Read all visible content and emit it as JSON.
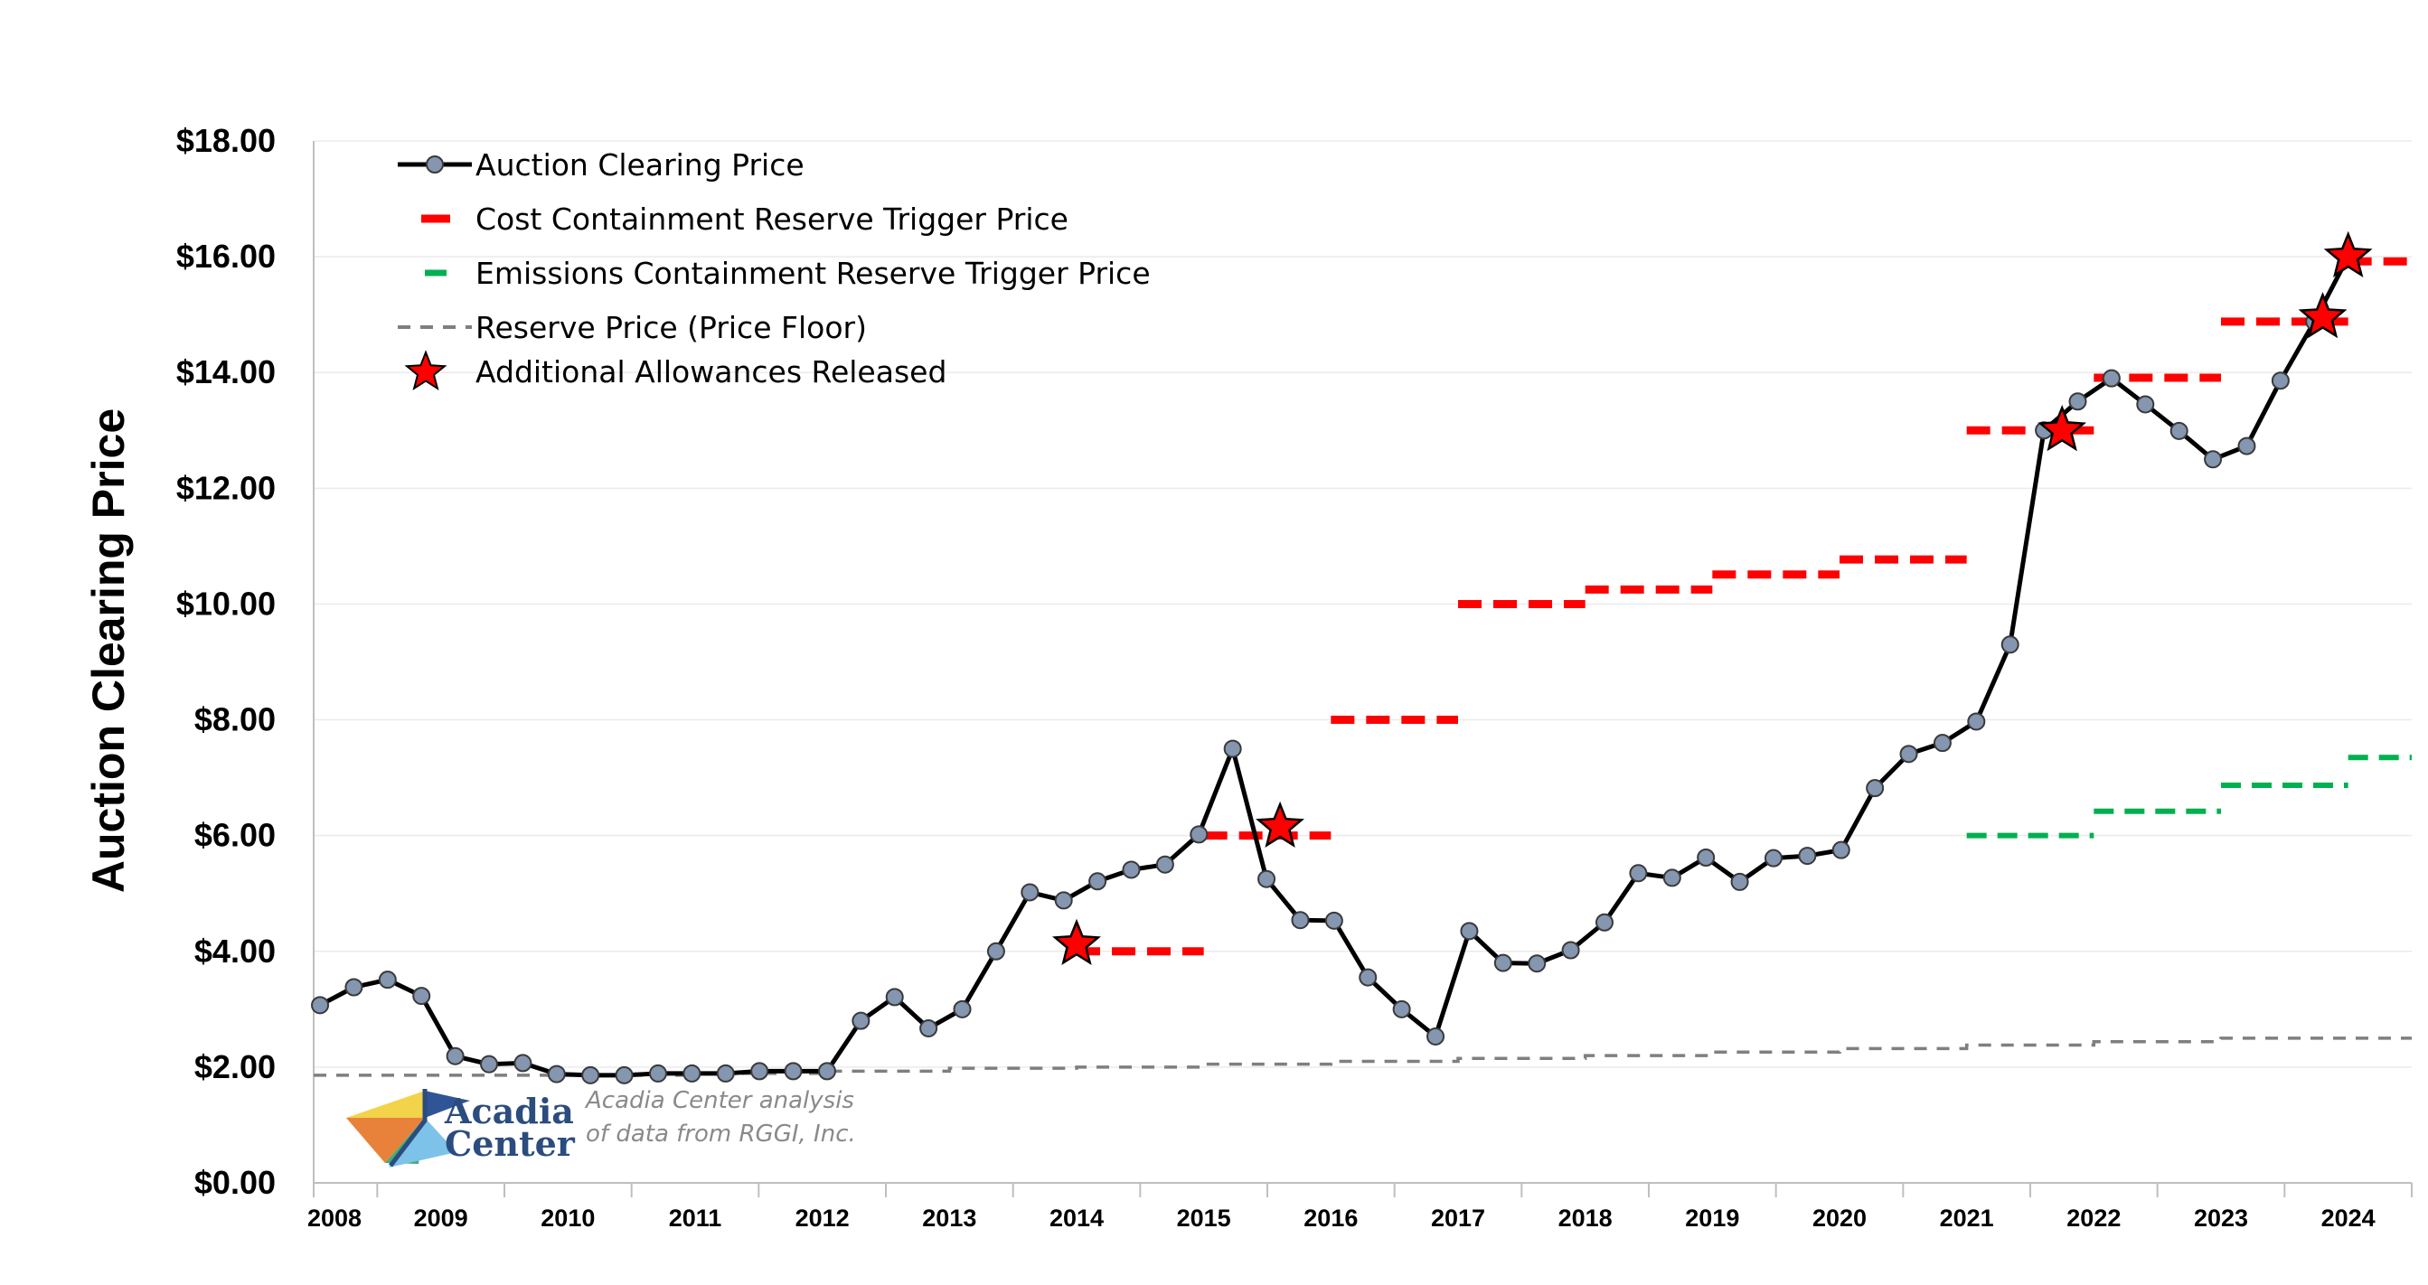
{
  "chart_data": {
    "type": "line",
    "ylabel": "Auction Clearing Price",
    "xlabel": "",
    "ylim": [
      0,
      18
    ],
    "y_ticks": [
      "$0.00",
      "$2.00",
      "$4.00",
      "$6.00",
      "$8.00",
      "$10.00",
      "$12.00",
      "$14.00",
      "$16.00",
      "$18.00"
    ],
    "x_tick_labels": [
      "2008",
      "2009",
      "2010",
      "2011",
      "2012",
      "2013",
      "2014",
      "2015",
      "2016",
      "2017",
      "2018",
      "2019",
      "2020",
      "2021",
      "2022",
      "2023",
      "2024"
    ],
    "grid": "horizontal",
    "legend_position": "top-left",
    "legend": [
      {
        "key": "acp",
        "label": "Auction Clearing Price"
      },
      {
        "key": "ccr",
        "label": "Cost Containment Reserve Trigger Price"
      },
      {
        "key": "ecr",
        "label": "Emissions Containment Reserve Trigger Price"
      },
      {
        "key": "floor",
        "label": "Reserve Price (Price Floor)"
      },
      {
        "key": "star",
        "label": "Additional Allowances Released"
      }
    ],
    "series": [
      {
        "key": "acp",
        "name": "Auction Clearing Price",
        "color": "#000000",
        "marker_color": "#8496b0",
        "values": [
          3.07,
          3.38,
          3.51,
          3.23,
          2.19,
          2.05,
          2.07,
          1.88,
          1.86,
          1.86,
          1.89,
          1.89,
          1.89,
          1.93,
          1.93,
          1.93,
          2.8,
          3.21,
          2.67,
          3.0,
          4.0,
          5.02,
          4.88,
          5.21,
          5.41,
          5.5,
          6.02,
          7.5,
          5.25,
          4.54,
          4.53,
          3.55,
          3.0,
          2.53,
          4.35,
          3.8,
          3.79,
          4.02,
          4.5,
          5.35,
          5.27,
          5.62,
          5.2,
          5.61,
          5.65,
          5.75,
          6.82,
          7.41,
          7.6,
          7.97,
          9.3,
          13.0,
          13.5,
          13.9,
          13.45,
          12.99,
          12.5,
          12.73,
          13.86,
          14.88,
          16.0
        ]
      },
      {
        "key": "floor",
        "name": "Reserve Price (Price Floor)",
        "color": "#7f7f7f",
        "steps": [
          [
            2008,
            1.86
          ],
          [
            2011,
            1.89
          ],
          [
            2012,
            1.93
          ],
          [
            2013,
            1.98
          ],
          [
            2014,
            2.0
          ],
          [
            2015,
            2.05
          ],
          [
            2016,
            2.1
          ],
          [
            2017,
            2.15
          ],
          [
            2018,
            2.2
          ],
          [
            2019,
            2.26
          ],
          [
            2020,
            2.32
          ],
          [
            2021,
            2.38
          ],
          [
            2022,
            2.44
          ],
          [
            2023,
            2.5
          ],
          [
            2024,
            2.5
          ]
        ]
      },
      {
        "key": "ccr",
        "name": "Cost Containment Reserve Trigger Price",
        "color": "#ff0000",
        "segments": [
          [
            2014,
            4.0
          ],
          [
            2015,
            6.0
          ],
          [
            2016,
            8.0
          ],
          [
            2017,
            10.0
          ],
          [
            2018,
            10.25
          ],
          [
            2019,
            10.51
          ],
          [
            2020,
            10.77
          ],
          [
            2021,
            13.0
          ],
          [
            2022,
            13.91
          ],
          [
            2023,
            14.88
          ],
          [
            2024,
            15.92
          ]
        ]
      },
      {
        "key": "ecr",
        "name": "Emissions Containment Reserve Trigger Price",
        "color": "#00b050",
        "segments": [
          [
            2021,
            6.0
          ],
          [
            2022,
            6.42
          ],
          [
            2023,
            6.87
          ],
          [
            2024,
            7.35
          ]
        ]
      }
    ],
    "stars": [
      {
        "x": 2014.0,
        "y": 4.12
      },
      {
        "x": 2015.6,
        "y": 6.15
      },
      {
        "x": 2021.75,
        "y": 13.0
      },
      {
        "x": 2023.8,
        "y": 14.95
      },
      {
        "x": 2024.0,
        "y": 16.0
      }
    ]
  },
  "credit": {
    "logo_line1": "Acadia",
    "logo_line2": "Center",
    "note_line1": "Acadia Center analysis",
    "note_line2": "of data from RGGI, Inc."
  }
}
